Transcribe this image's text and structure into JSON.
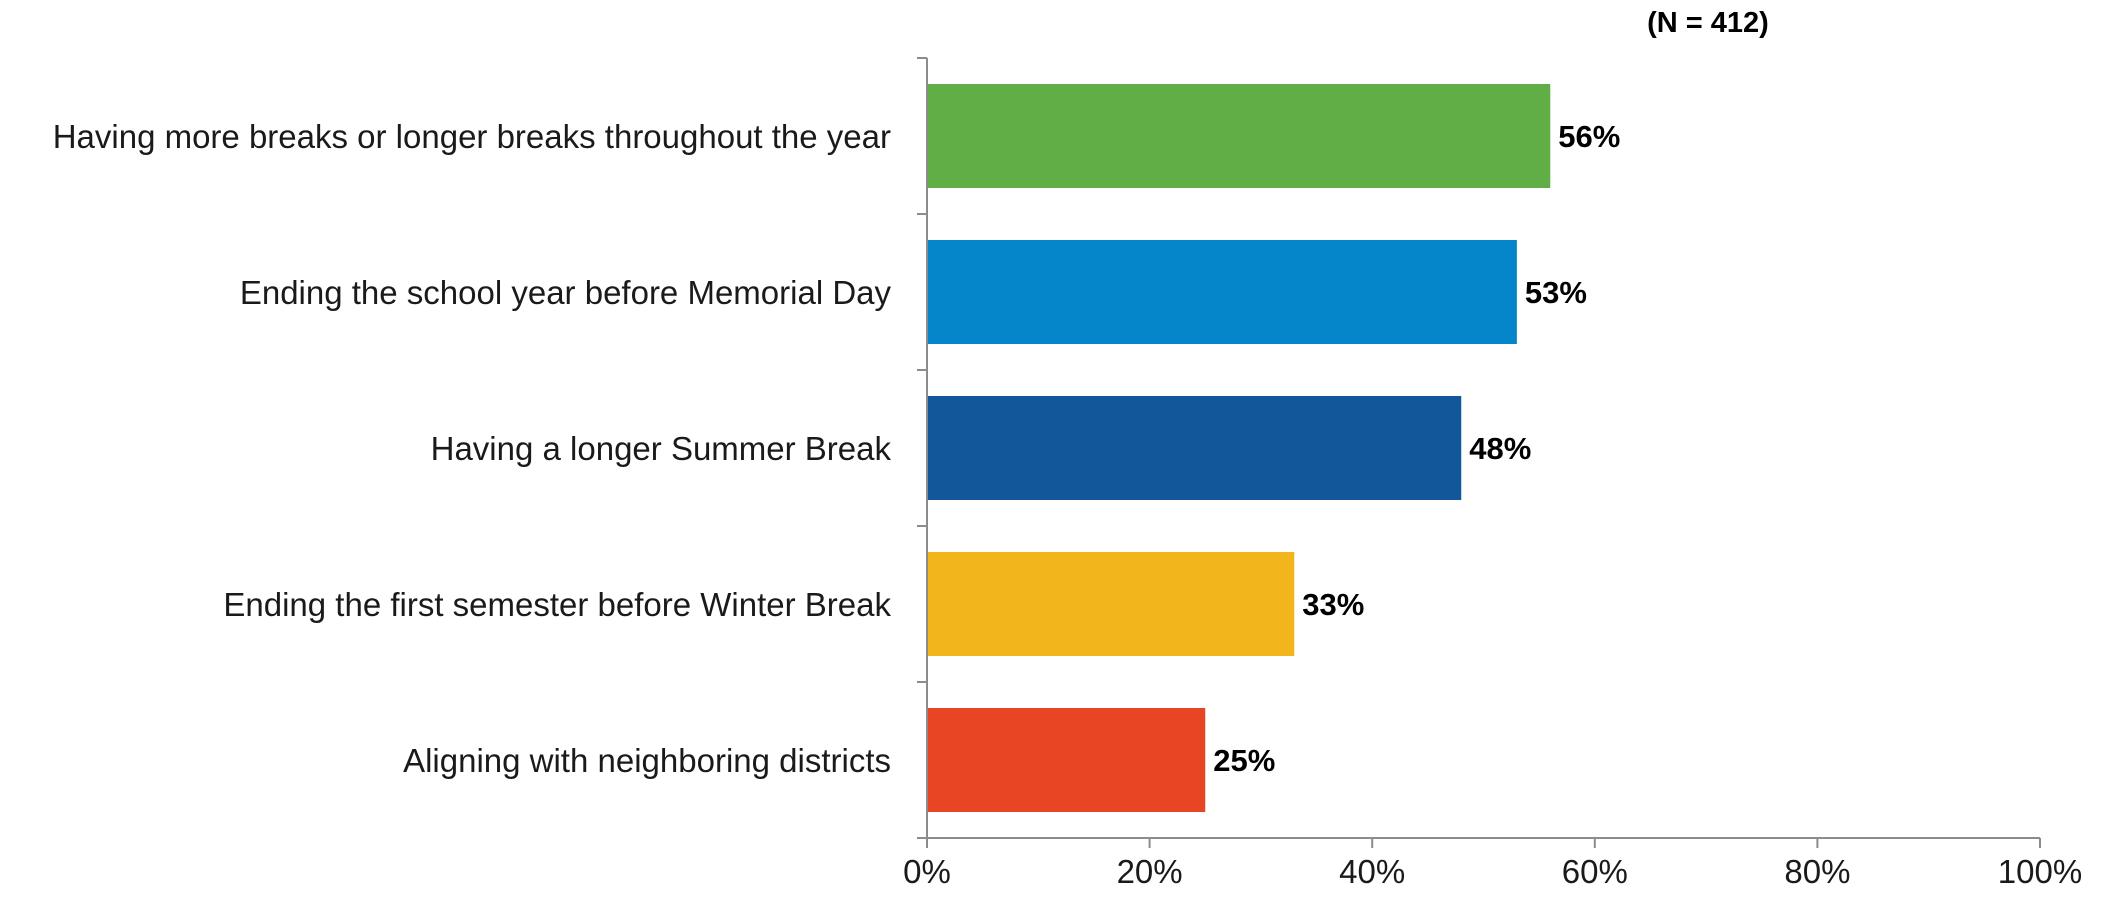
{
  "chart_data": {
    "type": "bar",
    "orientation": "horizontal",
    "note": "(N = 412)",
    "title": "",
    "xlabel": "",
    "ylabel": "",
    "xlim": [
      0,
      100
    ],
    "ticks": [
      "0%",
      "20%",
      "40%",
      "60%",
      "80%",
      "100%"
    ],
    "tick_values": [
      0,
      20,
      40,
      60,
      80,
      100
    ],
    "categories": [
      "Having more breaks or longer breaks throughout the year",
      "Ending the school year before Memorial Day",
      "Having a longer Summer Break",
      "Ending the first semester before Winter Break",
      "Aligning with neighboring districts"
    ],
    "values": [
      56,
      53,
      48,
      33,
      25
    ],
    "value_labels": [
      "56%",
      "53%",
      "48%",
      "33%",
      "25%"
    ],
    "colors": [
      "#62AE46",
      "#0686CA",
      "#11579A",
      "#F2B61C",
      "#E84525"
    ],
    "grid": false,
    "legend": "none"
  }
}
